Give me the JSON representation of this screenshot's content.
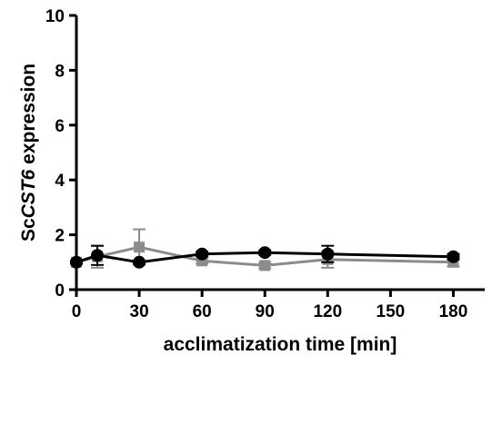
{
  "chart_data": {
    "type": "line",
    "xlabel": "acclimatization time [min]",
    "ylabel": {
      "prefix": "Sc",
      "italic": "CST6",
      "suffix": " expression"
    },
    "xlim": [
      0,
      195
    ],
    "ylim": [
      0,
      10
    ],
    "x_ticks": [
      0,
      30,
      60,
      90,
      120,
      150,
      180
    ],
    "y_ticks": [
      0,
      2,
      4,
      6,
      8,
      10
    ],
    "grid": false,
    "legend": "none",
    "series": [
      {
        "color": "#8c8c8c",
        "marker": "square",
        "points": [
          {
            "x": 0,
            "y": 1.0,
            "err": 0.05
          },
          {
            "x": 10,
            "y": 1.2,
            "err": 0.4
          },
          {
            "x": 30,
            "y": 1.55,
            "err": 0.65
          },
          {
            "x": 60,
            "y": 1.05,
            "err": 0.1
          },
          {
            "x": 90,
            "y": 0.88,
            "err": 0.1
          },
          {
            "x": 120,
            "y": 1.1,
            "err": 0.3
          },
          {
            "x": 180,
            "y": 1.0,
            "err": 0.15
          }
        ]
      },
      {
        "color": "#000000",
        "marker": "circle",
        "points": [
          {
            "x": 0,
            "y": 1.0,
            "err": 0.05
          },
          {
            "x": 10,
            "y": 1.25,
            "err": 0.35
          },
          {
            "x": 30,
            "y": 1.0,
            "err": 0.05
          },
          {
            "x": 60,
            "y": 1.3,
            "err": 0.08
          },
          {
            "x": 90,
            "y": 1.35,
            "err": 0.08
          },
          {
            "x": 120,
            "y": 1.3,
            "err": 0.3
          },
          {
            "x": 180,
            "y": 1.2,
            "err": 0.1
          }
        ]
      }
    ]
  }
}
